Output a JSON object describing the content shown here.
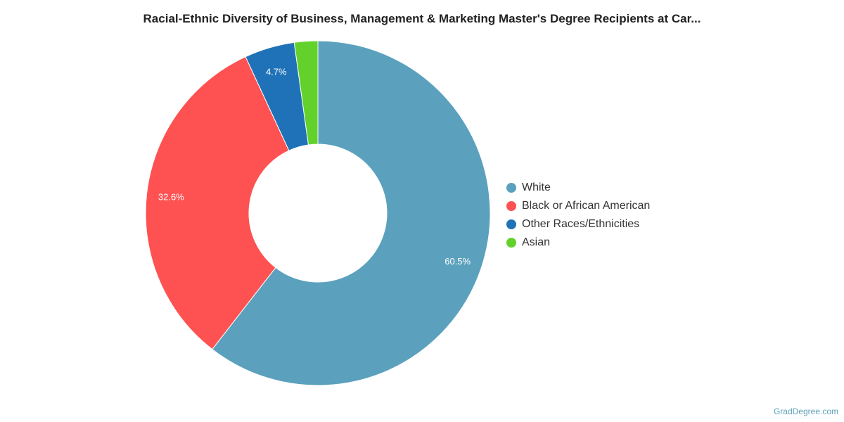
{
  "chart_data": {
    "type": "pie",
    "donut": true,
    "title": "Racial-Ethnic Diversity of Business, Management & Marketing Master's Degree Recipients at Car...",
    "legend_position": "right",
    "slices": [
      {
        "label": "White",
        "value": 60.5,
        "value_label": "60.5%",
        "color": "#5ba1bd"
      },
      {
        "label": "Black or African American",
        "value": 32.6,
        "value_label": "32.6%",
        "color": "#fe5252"
      },
      {
        "label": "Other Races/Ethnicities",
        "value": 4.7,
        "value_label": "4.7%",
        "color": "#1f72b7"
      },
      {
        "label": "Asian",
        "value": 2.2,
        "value_label": "",
        "color": "#62d12b"
      }
    ]
  },
  "footer": {
    "credit": "GradDegree.com"
  }
}
